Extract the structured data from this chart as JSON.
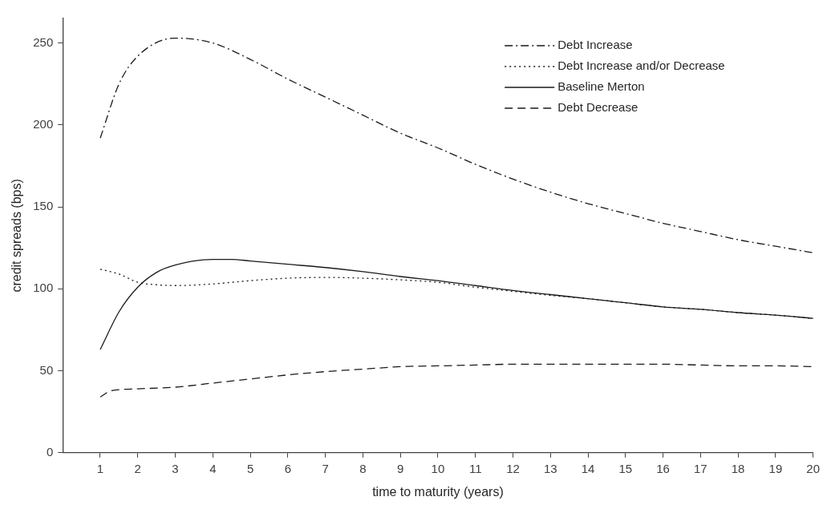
{
  "chart_data": {
    "type": "line",
    "xlabel": "time to maturity (years)",
    "ylabel": "credit spreads (bps)",
    "xlim": [
      0,
      20
    ],
    "xticks": [
      1,
      2,
      3,
      4,
      5,
      6,
      7,
      8,
      9,
      10,
      11,
      12,
      13,
      14,
      15,
      16,
      17,
      18,
      19,
      20
    ],
    "ylim": [
      0,
      265
    ],
    "yticks": [
      0,
      50,
      100,
      150,
      200,
      250
    ],
    "grid": false,
    "legend": "top right",
    "marker": "none",
    "series": [
      {
        "name": "Debt Increase",
        "color": "#1a1a1a",
        "line_style": "dashdot",
        "x": [
          1,
          1.5,
          2,
          3,
          4,
          5,
          6,
          7,
          8,
          9,
          10,
          11,
          12,
          13,
          14,
          15,
          16,
          17,
          18,
          19,
          20
        ],
        "values": [
          192,
          225,
          242,
          253,
          250,
          240,
          228,
          217,
          206,
          195,
          186,
          176,
          167,
          159,
          152,
          146,
          140,
          135,
          130,
          126,
          122
        ]
      },
      {
        "name": "Debt Increase and/or Decrease",
        "color": "#1a1a1a",
        "line_style": "dotted",
        "x": [
          1,
          1.5,
          2,
          2.5,
          3,
          4,
          5,
          6,
          7,
          8,
          9,
          10,
          11,
          12,
          13,
          14,
          15,
          16,
          17,
          18,
          19,
          20
        ],
        "values": [
          112,
          109,
          104,
          102.5,
          102,
          103,
          105,
          106.5,
          107,
          106.5,
          105.5,
          104,
          101,
          98.5,
          96,
          94,
          91.5,
          89,
          87.5,
          85.5,
          84,
          82
        ]
      },
      {
        "name": "Baseline Merton",
        "color": "#1a1a1a",
        "line_style": "solid",
        "x": [
          1,
          1.5,
          2,
          2.5,
          3,
          4,
          4.5,
          5,
          6,
          7,
          8,
          9,
          10,
          11,
          12,
          13,
          14,
          15,
          16,
          17,
          18,
          19,
          20
        ],
        "values": [
          63,
          86,
          101,
          110,
          114.5,
          118,
          118,
          117,
          115,
          113,
          110.5,
          107.5,
          105,
          102,
          99,
          96.5,
          94,
          91.5,
          89,
          87.5,
          85.5,
          84,
          82
        ]
      },
      {
        "name": "Debt Decrease",
        "color": "#1a1a1a",
        "line_style": "dashed",
        "x": [
          1,
          1.25,
          1.5,
          2,
          3,
          4,
          5,
          6,
          7,
          8,
          9,
          10,
          11,
          12,
          13,
          14,
          15,
          16,
          17,
          18,
          19,
          20
        ],
        "values": [
          34,
          37.5,
          38.5,
          39,
          40,
          42.5,
          45,
          47.5,
          49.5,
          51,
          52.5,
          53,
          53.5,
          54,
          54,
          54,
          54,
          54,
          53.5,
          53,
          53,
          52.5
        ]
      }
    ]
  }
}
